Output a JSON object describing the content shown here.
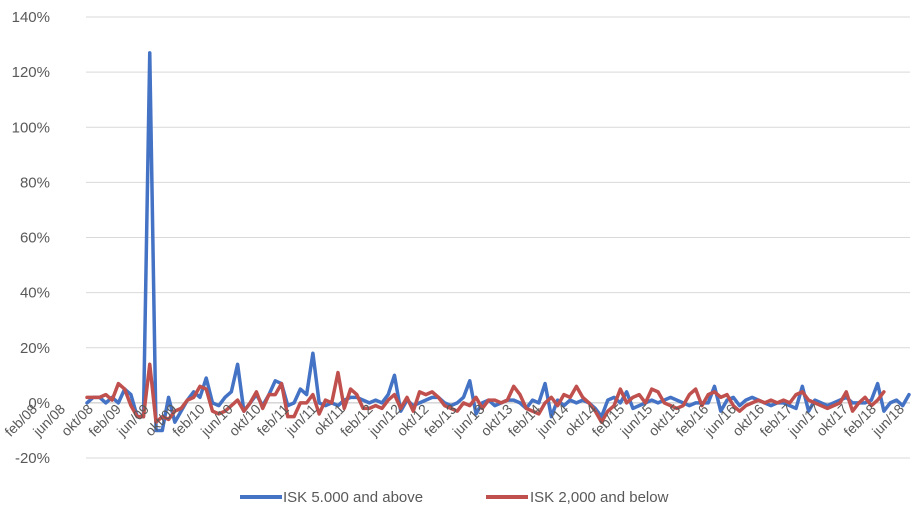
{
  "chart_data": {
    "type": "line",
    "title": "",
    "xlabel": "",
    "ylabel": "",
    "ylim": [
      -20,
      140
    ],
    "y_ticks": [
      -20,
      0,
      20,
      40,
      60,
      80,
      100,
      120,
      140
    ],
    "y_tick_labels": [
      "-20%",
      "0%",
      "20%",
      "40%",
      "60%",
      "80%",
      "100%",
      "120%",
      "140%"
    ],
    "grid": true,
    "legend_position": "bottom",
    "x_tick_labels": [
      "feb/08",
      "jun/08",
      "okt/08",
      "feb/09",
      "jun/09",
      "okt/09",
      "feb/10",
      "jun/10",
      "okt/10",
      "feb/11",
      "jun/11",
      "okt/11",
      "feb/12",
      "jun/12",
      "okt/12",
      "feb/13",
      "jun/13",
      "okt/13",
      "feb/14",
      "jun/14",
      "okt/14",
      "feb/15",
      "jun/15",
      "okt/15",
      "feb/16",
      "jun/16",
      "okt/16",
      "feb/17",
      "jun/17",
      "okt/17",
      "feb/18",
      "jun/18"
    ],
    "x_start": "feb/08",
    "x_end": "jul/18",
    "series": [
      {
        "name": "ISK 5.000 and above",
        "color": "#4472c4",
        "values": [
          0,
          2,
          2,
          0,
          2,
          0,
          5,
          3,
          -5,
          -5,
          127,
          -10,
          -10,
          2,
          -7,
          -3,
          1,
          4,
          2,
          9,
          0,
          -1,
          2,
          4,
          14,
          -3,
          0,
          3,
          -1,
          3,
          8,
          7,
          -1,
          0,
          5,
          3,
          18,
          0,
          -1,
          0,
          -1,
          1,
          2,
          2,
          1,
          0,
          1,
          0,
          3,
          10,
          -3,
          1,
          -1,
          0,
          1,
          2,
          2,
          0,
          -1,
          0,
          2,
          8,
          -4,
          0,
          1,
          -1,
          0,
          1,
          1,
          0,
          -2,
          1,
          0,
          7,
          -5,
          1,
          -1,
          1,
          0,
          1,
          0,
          -2,
          -5,
          1,
          2,
          0,
          4,
          -2,
          -1,
          0,
          1,
          0,
          1,
          2,
          1,
          0,
          -1,
          0,
          0,
          0,
          6,
          -3,
          1,
          2,
          -1,
          1,
          2,
          1,
          0,
          -1,
          0,
          0,
          -1,
          -2,
          6,
          -3,
          1,
          0,
          -1,
          0,
          1,
          2,
          0,
          0,
          0,
          1,
          7,
          -3,
          0,
          1,
          -1,
          3
        ]
      },
      {
        "name": "ISK 2,000 and below",
        "color": "#c0504d",
        "values": [
          2,
          2,
          2,
          3,
          1,
          7,
          5,
          -1,
          -5,
          -5,
          14,
          -7,
          -5,
          -6,
          -3,
          -2,
          1,
          2,
          6,
          5,
          -3,
          -4,
          -3,
          -1,
          1,
          -3,
          0,
          4,
          -2,
          3,
          3,
          7,
          -5,
          -5,
          0,
          0,
          3,
          -4,
          1,
          0,
          11,
          -2,
          5,
          3,
          -2,
          -2,
          -1,
          -2,
          1,
          3,
          -2,
          2,
          -3,
          4,
          3,
          4,
          2,
          -1,
          -2,
          -3,
          0,
          -1,
          2,
          -2,
          1,
          1,
          0,
          1,
          6,
          3,
          -2,
          -3,
          -4,
          0,
          2,
          -1,
          3,
          2,
          6,
          2,
          0,
          -3,
          -7,
          -3,
          -1,
          5,
          0,
          2,
          3,
          0,
          5,
          4,
          0,
          -1,
          -2,
          -1,
          3,
          5,
          -1,
          3,
          4,
          2,
          3,
          -1,
          -3,
          -1,
          0,
          1,
          0,
          1,
          0,
          1,
          0,
          3,
          4,
          1,
          0,
          -1,
          -2,
          -1,
          0,
          4,
          -3,
          0,
          2,
          -1,
          1,
          4
        ]
      }
    ]
  }
}
